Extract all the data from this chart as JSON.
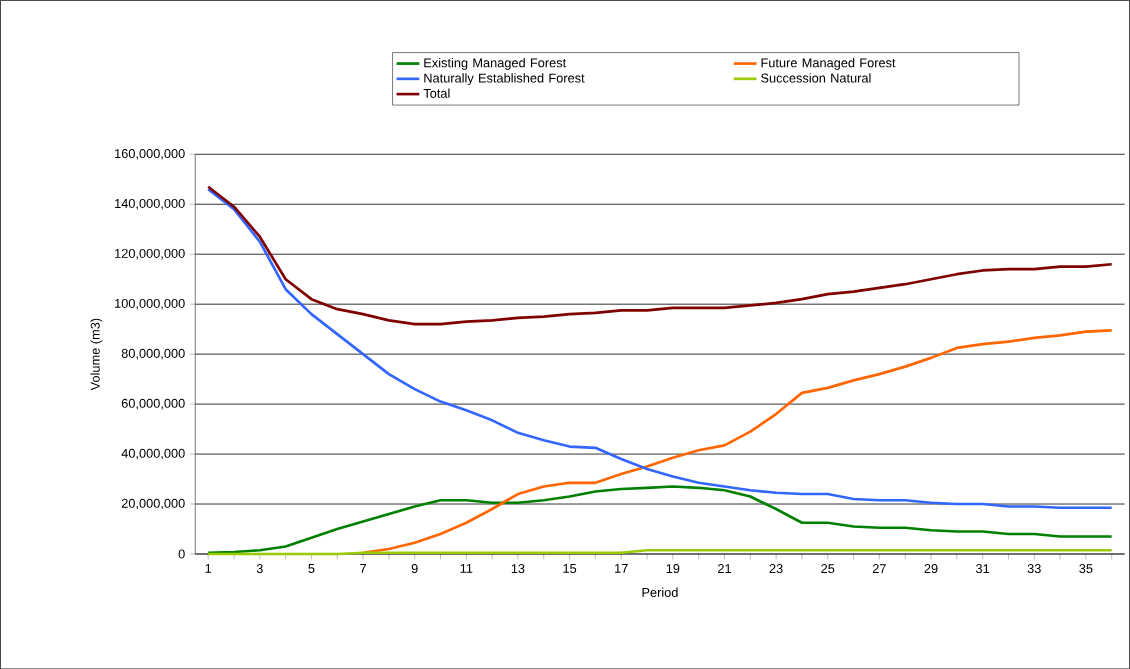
{
  "chart_data": {
    "type": "line",
    "xlabel": "Period",
    "ylabel": "Volume (m3)",
    "categories": [
      "1",
      null,
      "3",
      null,
      "5",
      null,
      "7",
      null,
      "9",
      null,
      "11",
      null,
      "13",
      null,
      "15",
      null,
      "17",
      null,
      "19",
      null,
      "21",
      null,
      "23",
      null,
      "25",
      null,
      "27",
      null,
      "29",
      null,
      "31",
      null,
      "33",
      null,
      "35",
      null
    ],
    "ylim": [
      0,
      160000000
    ],
    "yticks": [
      {
        "value": 0,
        "label": "0"
      },
      {
        "value": 20000000,
        "label": "20,000,000"
      },
      {
        "value": 40000000,
        "label": "40,000,000"
      },
      {
        "value": 60000000,
        "label": "60,000,000"
      },
      {
        "value": 80000000,
        "label": "80,000,000"
      },
      {
        "value": 100000000,
        "label": "100,000,000"
      },
      {
        "value": 120000000,
        "label": "120,000,000"
      },
      {
        "value": 140000000,
        "label": "140,000,000"
      },
      {
        "value": 160000000,
        "label": "160,000,000"
      }
    ],
    "grid": "y",
    "legend": "top right",
    "marker": "none",
    "line_style": "solid",
    "series": [
      {
        "name": "Existing Managed Forest",
        "color": "#008000",
        "values": [
          500000,
          800000,
          1500000,
          3000000,
          6500000,
          10000000,
          13000000,
          16000000,
          19000000,
          21500000,
          21500000,
          20500000,
          20500000,
          21500000,
          23000000,
          25000000,
          26000000,
          26500000,
          27000000,
          26500000,
          25500000,
          23000000,
          18000000,
          12500000,
          12500000,
          11000000,
          10500000,
          10500000,
          9500000,
          9000000,
          9000000,
          8000000,
          8000000,
          7000000,
          7000000,
          7000000
        ]
      },
      {
        "name": "Future Managed Forest",
        "color": "#ff6600",
        "values": [
          null,
          null,
          null,
          null,
          null,
          null,
          500000,
          2000000,
          4500000,
          8000000,
          12500000,
          18000000,
          24000000,
          27000000,
          28500000,
          28500000,
          32000000,
          35000000,
          38500000,
          41500000,
          43500000,
          49000000,
          56000000,
          64500000,
          66500000,
          69500000,
          72000000,
          75000000,
          78500000,
          82500000,
          84000000,
          85000000,
          86500000,
          87500000,
          89000000,
          89500000
        ]
      },
      {
        "name": "Naturally Established Forest",
        "color": "#3366ff",
        "values": [
          146000000,
          138000000,
          125000000,
          106000000,
          96000000,
          88000000,
          80000000,
          72000000,
          66000000,
          61000000,
          57500000,
          53500000,
          48500000,
          45500000,
          43000000,
          42500000,
          38000000,
          34000000,
          31000000,
          28500000,
          27000000,
          25500000,
          24500000,
          24000000,
          24000000,
          22000000,
          21500000,
          21500000,
          20500000,
          20000000,
          20000000,
          19000000,
          19000000,
          18500000,
          18500000,
          18500000
        ]
      },
      {
        "name": "Succession Natural",
        "color": "#99cc00",
        "values": [
          0,
          0,
          0,
          0,
          0,
          0,
          500000,
          500000,
          500000,
          500000,
          500000,
          500000,
          500000,
          500000,
          500000,
          500000,
          500000,
          1500000,
          1500000,
          1500000,
          1500000,
          1500000,
          1500000,
          1500000,
          1500000,
          1500000,
          1500000,
          1500000,
          1500000,
          1500000,
          1500000,
          1500000,
          1500000,
          1500000,
          1500000,
          1500000
        ]
      },
      {
        "name": "Total",
        "color": "#800000",
        "values": [
          147000000,
          139000000,
          127000000,
          110000000,
          102000000,
          98000000,
          96000000,
          93500000,
          92000000,
          92000000,
          93000000,
          93500000,
          94500000,
          95000000,
          96000000,
          96500000,
          97500000,
          97500000,
          98500000,
          98500000,
          98500000,
          99500000,
          100500000,
          102000000,
          104000000,
          105000000,
          106500000,
          108000000,
          110000000,
          112000000,
          113500000,
          114000000,
          114000000,
          115000000,
          115000000,
          116000000
        ]
      }
    ]
  }
}
